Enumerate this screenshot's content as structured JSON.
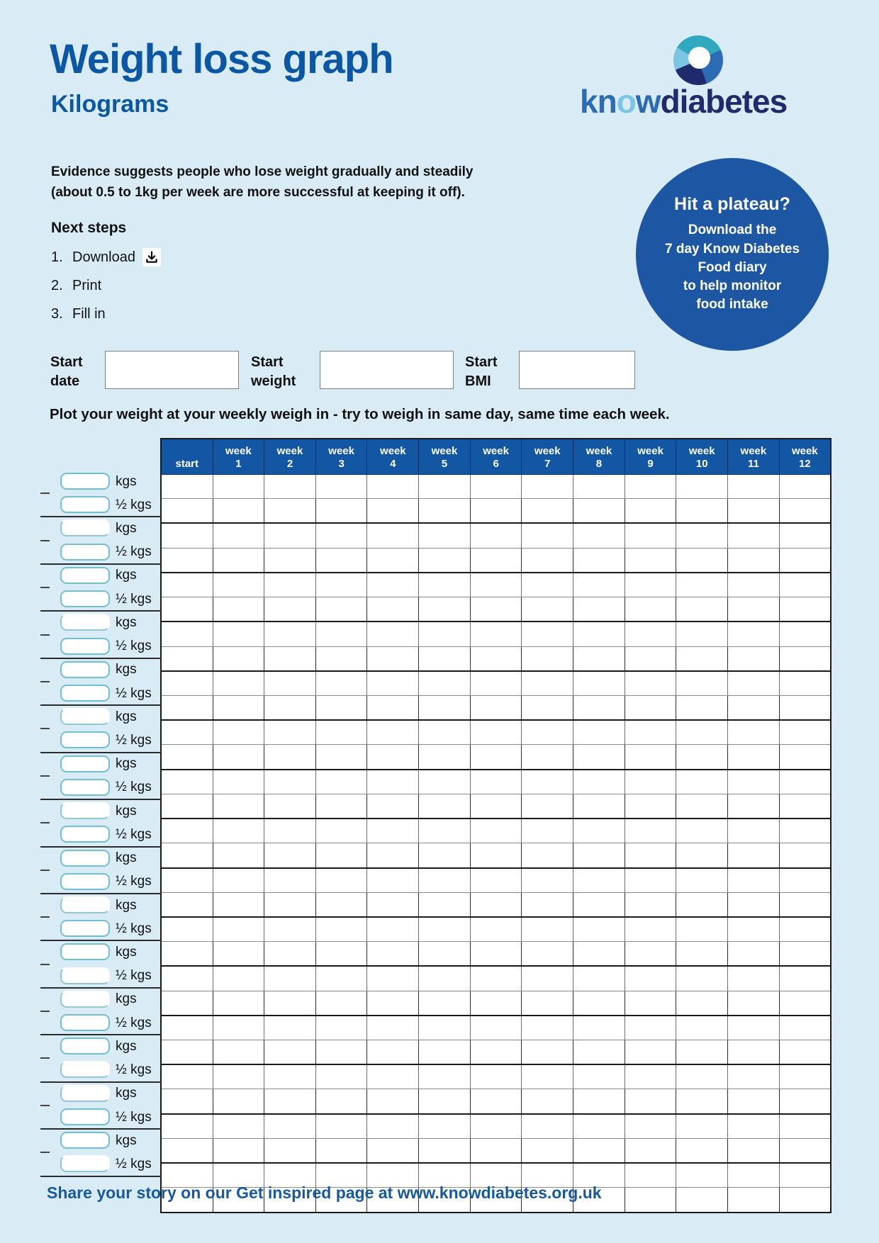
{
  "header": {
    "title": "Weight loss graph",
    "subtitle": "Kilograms"
  },
  "logo": {
    "part1": "kn",
    "part_o": "o",
    "part2": "w",
    "part3": "diabetes"
  },
  "intro": {
    "line1": "Evidence suggests people who lose weight gradually and steadily",
    "line2": "(about 0.5 to 1kg per week are more successful at keeping it off)."
  },
  "plateau_badge": {
    "title": "Hit a plateau?",
    "lines": [
      "Download the",
      "7 day Know Diabetes",
      "Food diary",
      "to help monitor",
      "food intake"
    ],
    "bg_color": "#1d57a4"
  },
  "next_steps": {
    "heading": "Next steps",
    "items": [
      {
        "num": "1.",
        "label": "Download",
        "icon": "download-icon"
      },
      {
        "num": "2.",
        "label": "Print"
      },
      {
        "num": "3.",
        "label": "Fill in"
      }
    ]
  },
  "start_fields": [
    {
      "label": "Start date",
      "value": ""
    },
    {
      "label": "Start weight",
      "value": ""
    },
    {
      "label": "Start BMI",
      "value": ""
    }
  ],
  "instruction": "Plot your weight at your weekly weigh in - try to weigh in same day, same time each week.",
  "table": {
    "header_bg": "#1256a4",
    "columns": [
      "start",
      "week 1",
      "week 2",
      "week 3",
      "week 4",
      "week 5",
      "week 6",
      "week 7",
      "week 8",
      "week 9",
      "week 10",
      "week 11",
      "week 12"
    ],
    "row_labels": [
      "kgs",
      "½ kgs",
      "kgs",
      "½ kgs",
      "kgs",
      "½ kgs",
      "kgs",
      "½ kgs",
      "kgs",
      "½ kgs",
      "kgs",
      "½ kgs",
      "kgs",
      "½ kgs",
      "kgs",
      "½ kgs",
      "kgs",
      "½ kgs",
      "kgs",
      "½ kgs",
      "kgs",
      "½ kgs",
      "kgs",
      "½ kgs",
      "kgs",
      "½ kgs",
      "kgs",
      "½ kgs",
      "kgs",
      "½ kgs"
    ],
    "cell_values": []
  },
  "footer": {
    "text": "Share your story on our Get inspired page at www.knowdiabetes.org.uk"
  },
  "colors": {
    "page_bg": "#d9ecf6",
    "title_blue": "#0b57a4",
    "header_blue": "#1256a4",
    "teal_box_border": "#72bfd1"
  }
}
